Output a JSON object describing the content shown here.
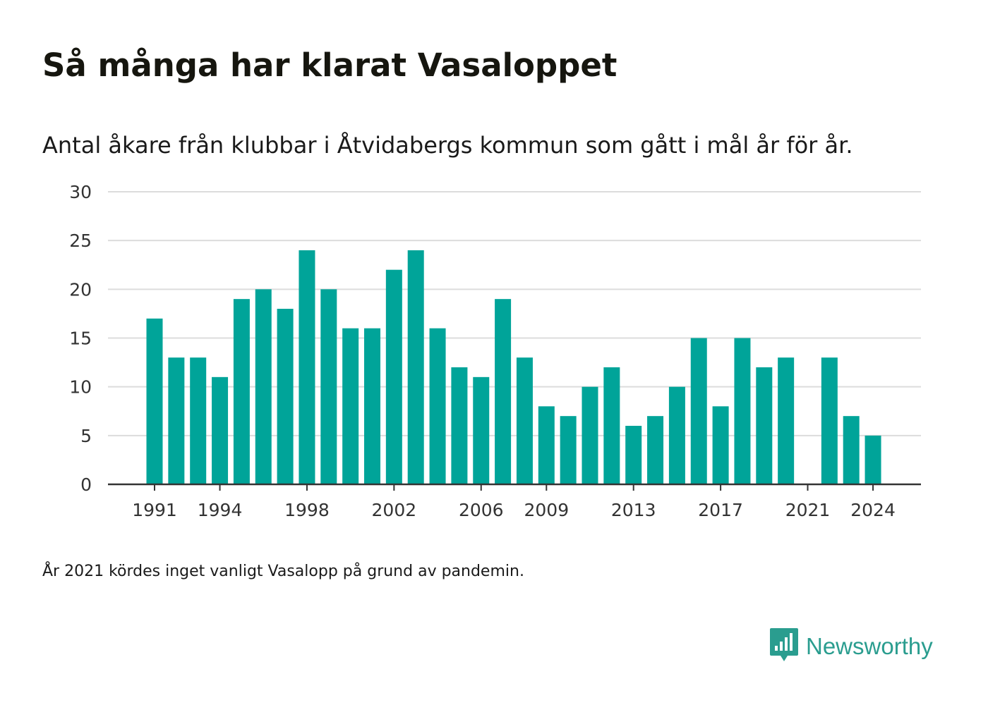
{
  "title": "Så många har klarat Vasaloppet",
  "subtitle": "Antal åkare från klubbar i Åtvidabergs kommun som gått i mål år för år.",
  "note": "År 2021 kördes inget vanligt Vasalopp på grund av pandemin.",
  "brand": {
    "name": "Newsworthy",
    "icon": "newsworthy-logo-icon",
    "color": "#2a9d8f"
  },
  "chart_data": {
    "type": "bar",
    "x": [
      1991,
      1992,
      1993,
      1994,
      1995,
      1996,
      1997,
      1998,
      1999,
      2000,
      2001,
      2002,
      2003,
      2004,
      2005,
      2006,
      2007,
      2008,
      2009,
      2010,
      2011,
      2012,
      2013,
      2014,
      2015,
      2016,
      2017,
      2018,
      2019,
      2020,
      2021,
      2022,
      2023,
      2024
    ],
    "values": [
      17,
      13,
      13,
      11,
      19,
      20,
      18,
      24,
      20,
      16,
      16,
      22,
      24,
      16,
      12,
      11,
      19,
      13,
      8,
      7,
      10,
      12,
      6,
      7,
      10,
      15,
      8,
      15,
      12,
      13,
      null,
      13,
      7,
      5
    ],
    "x_ticks": [
      "1991",
      "1994",
      "1998",
      "2002",
      "2006",
      "2009",
      "2013",
      "2017",
      "2021",
      "2024"
    ],
    "y_ticks": [
      "0",
      "5",
      "10",
      "15",
      "20",
      "25",
      "30"
    ],
    "ylim": [
      0,
      30
    ],
    "bar_color": "#00a499",
    "grid": true
  }
}
